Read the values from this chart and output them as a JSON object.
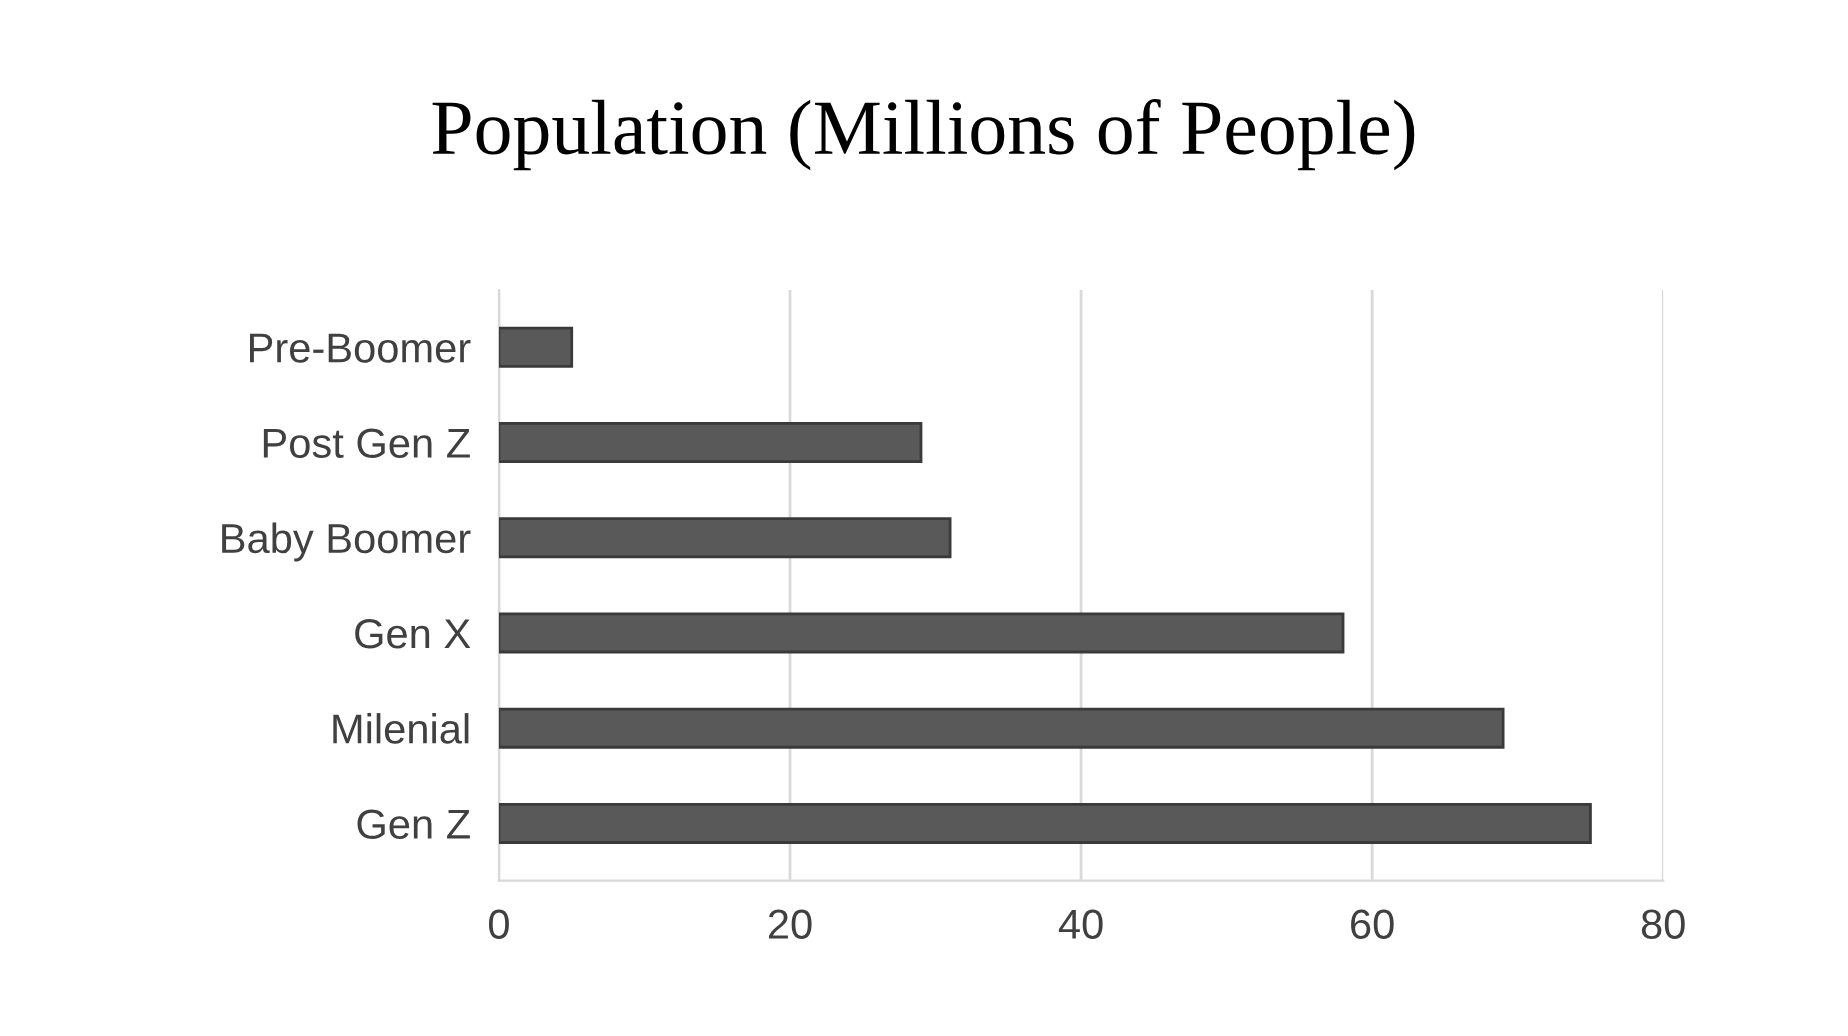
{
  "chart_data": {
    "type": "bar",
    "orientation": "horizontal",
    "title": "Population (Millions of People)",
    "categories": [
      "Pre-Boomer",
      "Post Gen Z",
      "Baby Boomer",
      "Gen X",
      "Milenial",
      "Gen Z"
    ],
    "values": [
      5,
      29,
      31,
      58,
      69,
      75
    ],
    "color": "#595959",
    "xlim": [
      0,
      80
    ],
    "xticks": [
      0,
      20,
      40,
      60,
      80
    ],
    "grid": "x"
  }
}
